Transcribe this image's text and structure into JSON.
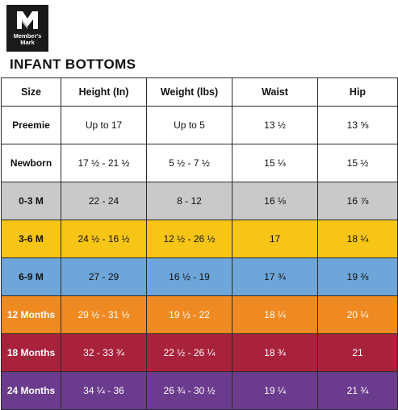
{
  "brand": {
    "logo_text": "Member's Mark"
  },
  "title": "INFANT BOTTOMS",
  "colors": {
    "preemie": "#ffffff",
    "newborn": "#ffffff",
    "0-3": "#c9c9c9",
    "3-6": "#f7c516",
    "6-9": "#6ea6d9",
    "12": "#ef8a22",
    "18": "#a8223c",
    "24": "#6b3b8e"
  },
  "table": {
    "headers": [
      "Size",
      "Height (In)",
      "Weight (lbs)",
      "Waist",
      "Hip"
    ],
    "rows": [
      {
        "size": "Preemie",
        "height": "Up to 17",
        "weight": "Up to 5",
        "waist": "13 ½",
        "hip": "13 ⅝"
      },
      {
        "size": "Newborn",
        "height": "17 ½ - 21 ½",
        "weight": "5 ½ - 7 ½",
        "waist": "15 ¼",
        "hip": "15 ½"
      },
      {
        "size": "0-3 M",
        "height": "22 - 24",
        "weight": "8 - 12",
        "waist": "16 ⅛",
        "hip": "16 ⅞"
      },
      {
        "size": "3-6 M",
        "height": "24 ½ - 16 ½",
        "weight": "12 ½ - 26 ½",
        "waist": "17",
        "hip": "18 ¼"
      },
      {
        "size": "6-9 M",
        "height": "27 - 29",
        "weight": "16 ½ - 19",
        "waist": "17 ¾",
        "hip": "19 ⅜"
      },
      {
        "size": "12 Months",
        "height": "29 ½ - 31 ½",
        "weight": "19 ½ - 22",
        "waist": "18 ¼",
        "hip": "20 ¼"
      },
      {
        "size": "18 Months",
        "height": "32 - 33 ¾",
        "weight": "22 ½ - 26 ¼",
        "waist": "18 ¾",
        "hip": "21"
      },
      {
        "size": "24 Months",
        "height": "34 ¼ - 36",
        "weight": "26 ¾ - 30 ½",
        "waist": "19 ¼",
        "hip": "21 ¾"
      }
    ]
  }
}
